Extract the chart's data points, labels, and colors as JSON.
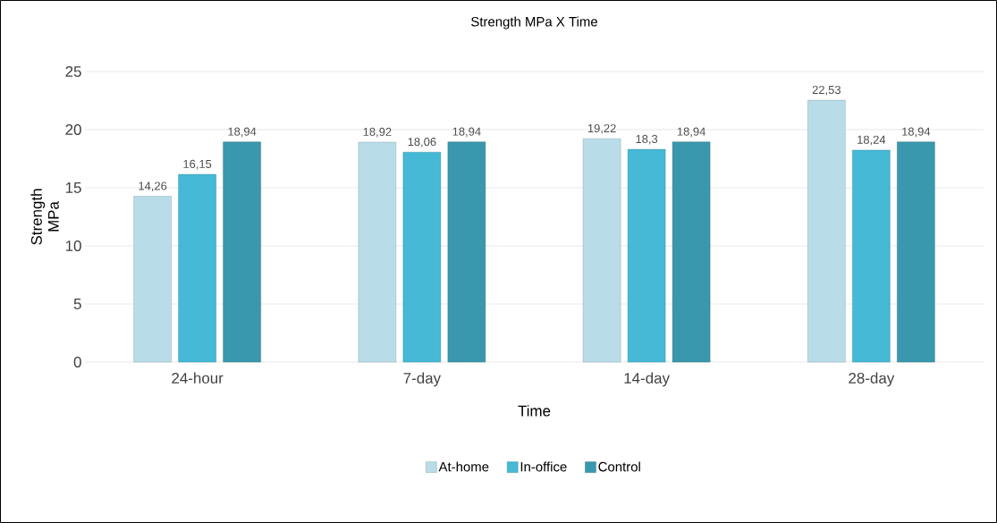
{
  "chart_data": {
    "type": "bar",
    "title": "Strength MPa X Time",
    "xlabel": "Time",
    "ylabel": "Strength MPa",
    "categories": [
      "24-hour",
      "7-day",
      "14-day",
      "28-day"
    ],
    "series": [
      {
        "name": "At-home",
        "color": "#b9dde8",
        "values": [
          14.26,
          18.92,
          19.22,
          22.53
        ],
        "value_labels": [
          "14,26",
          "18,92",
          "19,22",
          "22,53"
        ]
      },
      {
        "name": "In-office",
        "color": "#45b9d6",
        "values": [
          16.15,
          18.06,
          18.3,
          18.24
        ],
        "value_labels": [
          "16,15",
          "18,06",
          "18,3",
          "18,24"
        ]
      },
      {
        "name": "Control",
        "color": "#3a98ae",
        "values": [
          18.94,
          18.94,
          18.94,
          18.94
        ],
        "value_labels": [
          "18,94",
          "18,94",
          "18,94",
          "18,94"
        ]
      }
    ],
    "ylim": [
      0,
      25
    ],
    "yticks": [
      0,
      5,
      10,
      15,
      20,
      25
    ],
    "grid": "y",
    "legend": "bottom"
  }
}
